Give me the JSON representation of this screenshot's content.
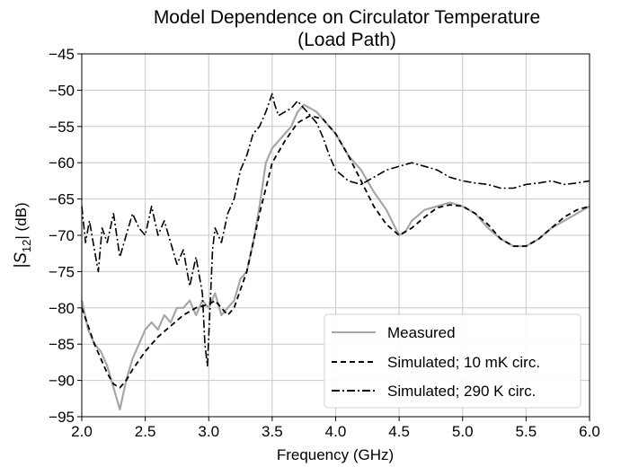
{
  "chart_data": {
    "type": "line",
    "title": "Model Dependence on Circulator Temperature",
    "subtitle": "(Load Path)",
    "xlabel": "Frequency (GHz)",
    "ylabel_prefix": "|S",
    "ylabel_sub": "12",
    "ylabel_suffix": "| (dB)",
    "xlim": [
      2.0,
      6.0
    ],
    "ylim": [
      -95,
      -45
    ],
    "xticks": [
      "2.0",
      "2.5",
      "3.0",
      "3.5",
      "4.0",
      "4.5",
      "5.0",
      "5.5",
      "6.0"
    ],
    "yticks": [
      "-45",
      "-50",
      "-55",
      "-60",
      "-65",
      "-70",
      "-75",
      "-80",
      "-85",
      "-90",
      "-95"
    ],
    "grid": true,
    "legend_position": "lower right",
    "series": [
      {
        "name": "Measured",
        "style": "solid",
        "color": "#a6a6a6",
        "x": [
          2.0,
          2.05,
          2.1,
          2.15,
          2.2,
          2.25,
          2.3,
          2.35,
          2.4,
          2.45,
          2.5,
          2.55,
          2.6,
          2.65,
          2.7,
          2.75,
          2.8,
          2.85,
          2.9,
          2.95,
          3.0,
          3.05,
          3.1,
          3.15,
          3.2,
          3.25,
          3.3,
          3.35,
          3.4,
          3.45,
          3.5,
          3.55,
          3.6,
          3.65,
          3.7,
          3.75,
          3.8,
          3.85,
          3.9,
          3.95,
          4.0,
          4.1,
          4.2,
          4.3,
          4.4,
          4.5,
          4.55,
          4.6,
          4.7,
          4.8,
          4.9,
          5.0,
          5.1,
          5.2,
          5.3,
          5.4,
          5.5,
          5.6,
          5.7,
          5.8,
          5.9,
          6.0
        ],
        "y": [
          -79,
          -83,
          -85,
          -86,
          -88,
          -91,
          -94,
          -90,
          -87,
          -85,
          -83,
          -82,
          -83,
          -81,
          -82,
          -80,
          -80,
          -79,
          -81,
          -79,
          -80,
          -78,
          -81,
          -80,
          -79,
          -76,
          -75,
          -71,
          -66,
          -60,
          -58,
          -57,
          -56,
          -55,
          -53,
          -52,
          -52.5,
          -53,
          -54,
          -55,
          -56,
          -59,
          -61,
          -64,
          -66.5,
          -70,
          -69.5,
          -68,
          -66.5,
          -66,
          -65.5,
          -66,
          -67,
          -69,
          -70.5,
          -71.5,
          -71.5,
          -70.5,
          -69,
          -68,
          -67,
          -66
        ]
      },
      {
        "name": "Simulated; 10 mK circ.",
        "style": "dashed",
        "color": "#000000",
        "x": [
          2.0,
          2.05,
          2.1,
          2.15,
          2.2,
          2.25,
          2.3,
          2.35,
          2.4,
          2.5,
          2.6,
          2.7,
          2.8,
          2.9,
          3.0,
          3.05,
          3.1,
          3.15,
          3.2,
          3.3,
          3.4,
          3.5,
          3.6,
          3.7,
          3.8,
          3.9,
          4.0,
          4.1,
          4.2,
          4.3,
          4.4,
          4.5,
          4.6,
          4.7,
          4.8,
          4.9,
          5.0,
          5.1,
          5.2,
          5.3,
          5.4,
          5.5,
          5.6,
          5.7,
          5.8,
          5.9,
          6.0
        ],
        "y": [
          -80,
          -82.5,
          -85,
          -87,
          -89,
          -90.5,
          -91,
          -90,
          -88.5,
          -86,
          -84,
          -82.5,
          -81,
          -80,
          -79.5,
          -79,
          -80,
          -81,
          -80,
          -75,
          -67,
          -60,
          -57,
          -54.5,
          -53.5,
          -54,
          -56,
          -59,
          -62.5,
          -66,
          -68.5,
          -70,
          -69,
          -67.5,
          -66.2,
          -65.8,
          -66,
          -67,
          -68.5,
          -70.5,
          -71.5,
          -71.5,
          -70.5,
          -69,
          -67.5,
          -66.5,
          -66
        ]
      },
      {
        "name": "Simulated; 290 K circ.",
        "style": "dashdot",
        "color": "#000000",
        "x": [
          2.0,
          2.03,
          2.06,
          2.1,
          2.13,
          2.16,
          2.2,
          2.25,
          2.3,
          2.35,
          2.4,
          2.45,
          2.5,
          2.55,
          2.6,
          2.65,
          2.7,
          2.75,
          2.8,
          2.85,
          2.9,
          2.95,
          2.97,
          2.99,
          3.01,
          3.03,
          3.05,
          3.1,
          3.15,
          3.2,
          3.25,
          3.3,
          3.35,
          3.4,
          3.45,
          3.5,
          3.52,
          3.55,
          3.6,
          3.65,
          3.7,
          3.75,
          3.8,
          3.85,
          3.9,
          3.95,
          4.0,
          4.1,
          4.2,
          4.3,
          4.4,
          4.5,
          4.6,
          4.7,
          4.8,
          4.9,
          5.0,
          5.1,
          5.2,
          5.3,
          5.4,
          5.5,
          5.6,
          5.7,
          5.8,
          5.9,
          6.0
        ],
        "y": [
          -66,
          -71,
          -68,
          -72,
          -75,
          -69,
          -71,
          -67,
          -73,
          -70,
          -67,
          -69,
          -70,
          -66,
          -70,
          -68,
          -71,
          -74,
          -72,
          -77,
          -73,
          -78,
          -85,
          -88,
          -80,
          -72,
          -69,
          -71,
          -67,
          -65,
          -61,
          -59,
          -56,
          -55,
          -53,
          -50.5,
          -52,
          -53.5,
          -53,
          -52.5,
          -51.5,
          -52.5,
          -53.5,
          -54.5,
          -56.5,
          -59,
          -61,
          -62.5,
          -63,
          -62,
          -61,
          -60.5,
          -60,
          -60.5,
          -61,
          -62,
          -62.5,
          -62.8,
          -63,
          -63.5,
          -63.5,
          -63,
          -62.8,
          -62.5,
          -63,
          -62.8,
          -62.5
        ]
      }
    ]
  }
}
